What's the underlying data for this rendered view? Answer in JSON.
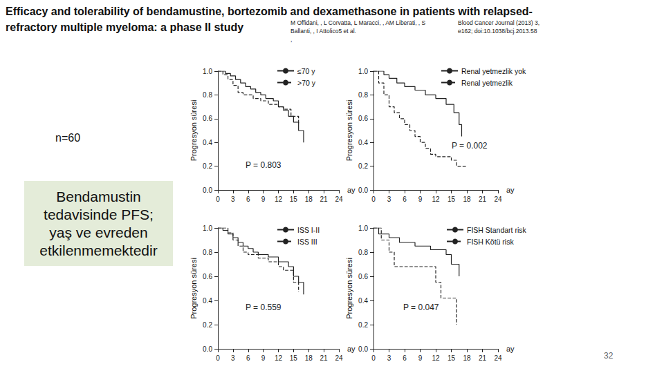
{
  "slide": {
    "title_lines": [
      "Efficacy and tolerability of bendamustine, bortezomib and dexamethasone in patients with relapsed-",
      "refractory multiple myeloma: a phase II study"
    ],
    "authors_lines": [
      "M Offidani, , L Corvatta, L Maracci, , AM Liberati, , S",
      "Ballanti, , I Attolico5 et al.",
      ","
    ],
    "journal_lines": [
      "Blood Cancer Journal (2013) 3,",
      "e162; doi:10.1038/bcj.2013.58"
    ],
    "n_label": "n=60",
    "box_lines": [
      "Bendamustin",
      "tedavisinde PFS;",
      "yaş ve evreden",
      "etkilenmemektedir"
    ],
    "page_number": "32"
  },
  "chart_data": [
    {
      "type": "step",
      "xlabel": "ay",
      "ylabel": "Progresyon süresi",
      "annotation": "P = 0.803",
      "xlim": [
        0,
        24
      ],
      "xticks": [
        0,
        3,
        6,
        9,
        12,
        15,
        18,
        21,
        24
      ],
      "ylim": [
        0,
        1
      ],
      "yticks": [
        {
          "value": 0,
          "label": "0.0"
        },
        {
          "value": 0.2,
          "label": "0.2"
        },
        {
          "value": 0.4,
          "label": "0.4"
        },
        {
          "value": 0.6,
          "label": "0.6"
        },
        {
          "value": 0.8,
          "label": "0.8"
        },
        {
          "value": 1,
          "label": "1.0"
        }
      ],
      "grid": false,
      "legend": "top-right",
      "series": [
        {
          "name": "≤70 y",
          "color": "#222222",
          "line_style": "solid",
          "x": [
            0,
            1.5,
            2.5,
            3.5,
            4.5,
            5.5,
            6.5,
            7.5,
            8.5,
            9.5,
            11,
            12,
            13,
            14,
            15,
            16,
            17
          ],
          "values": [
            1,
            0.98,
            0.96,
            0.93,
            0.9,
            0.87,
            0.85,
            0.82,
            0.8,
            0.77,
            0.75,
            0.7,
            0.67,
            0.62,
            0.57,
            0.5,
            0.4
          ]
        },
        {
          "name": ">70 y",
          "color": "#222222",
          "line_style": "dashed",
          "x": [
            0,
            1,
            2,
            3,
            4,
            5,
            7,
            8.5,
            10,
            12,
            13,
            14.5,
            16
          ],
          "values": [
            1,
            0.97,
            0.93,
            0.88,
            0.82,
            0.8,
            0.77,
            0.75,
            0.72,
            0.7,
            0.68,
            0.62,
            0.55
          ]
        }
      ]
    },
    {
      "type": "step",
      "xlabel": "ay",
      "ylabel": "Progresyon süresi",
      "annotation": "P = 0.002",
      "xlim": [
        0,
        24
      ],
      "xticks": [
        0,
        3,
        6,
        9,
        12,
        15,
        18,
        21,
        24
      ],
      "ylim": [
        0,
        1
      ],
      "yticks": [
        {
          "value": 0,
          "label": "0.0"
        },
        {
          "value": 0.2,
          "label": "0.2"
        },
        {
          "value": 0.4,
          "label": "0.4"
        },
        {
          "value": 0.6,
          "label": "0.6"
        },
        {
          "value": 0.8,
          "label": "0.8"
        },
        {
          "value": 1,
          "label": "1.0"
        }
      ],
      "grid": false,
      "legend": "top-right",
      "series": [
        {
          "name": "Renal yetmezlik yok",
          "color": "#222222",
          "line_style": "solid",
          "x": [
            0,
            2,
            3,
            4.5,
            6,
            8,
            10,
            12,
            14,
            15.5,
            16.5,
            17
          ],
          "values": [
            1,
            0.97,
            0.94,
            0.9,
            0.87,
            0.84,
            0.8,
            0.77,
            0.72,
            0.65,
            0.55,
            0.45
          ]
        },
        {
          "name": "Renal yetmezlik",
          "color": "#222222",
          "line_style": "dashed",
          "x": [
            0,
            1,
            2,
            3,
            4,
            5,
            6,
            7,
            8,
            9,
            10,
            11,
            12,
            15,
            16,
            18
          ],
          "values": [
            1,
            0.9,
            0.8,
            0.7,
            0.65,
            0.6,
            0.55,
            0.5,
            0.45,
            0.4,
            0.35,
            0.3,
            0.28,
            0.25,
            0.2,
            0.2
          ]
        }
      ]
    },
    {
      "type": "step",
      "xlabel": "ay",
      "ylabel": "Progresyon süresi",
      "annotation": "P = 0.559",
      "xlim": [
        0,
        24
      ],
      "xticks": [
        0,
        3,
        6,
        9,
        12,
        15,
        18,
        21,
        24
      ],
      "ylim": [
        0,
        1
      ],
      "yticks": [
        {
          "value": 0,
          "label": "0.0"
        },
        {
          "value": 0.2,
          "label": "0.2"
        },
        {
          "value": 0.4,
          "label": "0.4"
        },
        {
          "value": 0.6,
          "label": "0.6"
        },
        {
          "value": 0.8,
          "label": "0.8"
        },
        {
          "value": 1,
          "label": "1.0"
        }
      ],
      "grid": false,
      "legend": "top-right",
      "series": [
        {
          "name": "ISS I-II",
          "color": "#222222",
          "line_style": "solid",
          "x": [
            0,
            1,
            2,
            3,
            4,
            5,
            6,
            7,
            8,
            10,
            12,
            14,
            15,
            16,
            17
          ],
          "values": [
            1,
            0.98,
            0.95,
            0.92,
            0.88,
            0.85,
            0.83,
            0.8,
            0.78,
            0.76,
            0.72,
            0.68,
            0.6,
            0.55,
            0.45
          ]
        },
        {
          "name": "ISS III",
          "color": "#222222",
          "line_style": "dashed",
          "x": [
            0,
            2,
            3,
            4,
            5,
            6,
            8,
            10,
            12,
            13,
            15,
            16
          ],
          "values": [
            1,
            0.96,
            0.9,
            0.85,
            0.8,
            0.78,
            0.75,
            0.72,
            0.68,
            0.65,
            0.55,
            0.47
          ]
        }
      ]
    },
    {
      "type": "step",
      "xlabel": "ay",
      "ylabel": "Progresyon süresi",
      "annotation": "P = 0.047",
      "xlim": [
        0,
        24
      ],
      "xticks": [
        0,
        3,
        6,
        9,
        12,
        15,
        18,
        21,
        24
      ],
      "ylim": [
        0,
        1
      ],
      "yticks": [
        {
          "value": 0,
          "label": "0.0"
        },
        {
          "value": 0.2,
          "label": "0.2"
        },
        {
          "value": 0.4,
          "label": "0.4"
        },
        {
          "value": 0.6,
          "label": "0.6"
        },
        {
          "value": 0.8,
          "label": "0.8"
        },
        {
          "value": 1,
          "label": "1.0"
        }
      ],
      "grid": false,
      "legend": "top-right",
      "series": [
        {
          "name": "FISH Standart risk",
          "color": "#222222",
          "line_style": "solid",
          "x": [
            0,
            1,
            3,
            5,
            8,
            11,
            14,
            15,
            16.5
          ],
          "values": [
            1,
            0.95,
            0.92,
            0.88,
            0.85,
            0.82,
            0.78,
            0.7,
            0.6
          ]
        },
        {
          "name": "FISH Kötü risk",
          "color": "#222222",
          "line_style": "dashed",
          "x": [
            0,
            1.5,
            3,
            4,
            8,
            12,
            13,
            15,
            16
          ],
          "values": [
            1,
            0.9,
            0.8,
            0.68,
            0.68,
            0.55,
            0.42,
            0.42,
            0.2
          ]
        }
      ]
    }
  ]
}
